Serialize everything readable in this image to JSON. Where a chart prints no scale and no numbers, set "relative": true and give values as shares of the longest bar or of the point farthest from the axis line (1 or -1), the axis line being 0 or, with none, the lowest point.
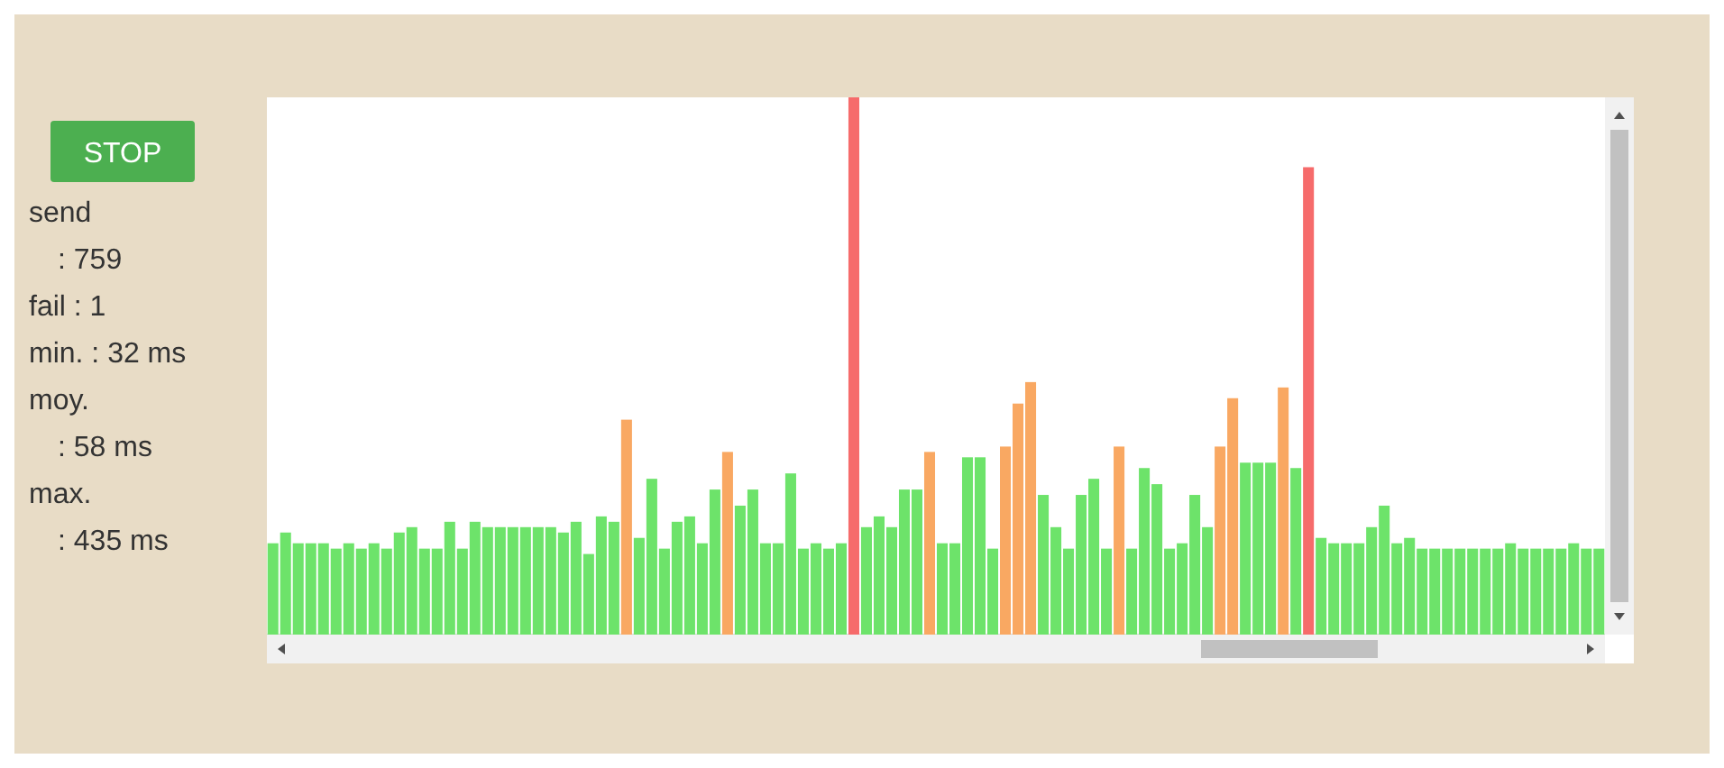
{
  "chart_data": {
    "type": "bar",
    "relative": true,
    "categories": [
      null,
      null,
      null,
      null,
      null,
      null,
      null,
      null,
      null,
      null,
      null,
      null,
      null,
      null,
      null,
      null,
      null,
      null,
      null,
      null,
      null,
      null,
      null,
      null,
      null,
      null,
      null,
      null,
      null,
      null,
      null,
      null,
      null,
      null,
      null,
      null,
      null,
      null,
      null,
      null,
      null,
      null,
      null,
      null,
      null,
      null,
      null,
      null,
      null,
      null,
      null,
      null,
      null,
      null,
      null,
      null,
      null,
      null,
      null,
      null,
      null,
      null,
      null,
      null,
      null,
      null,
      null,
      null,
      null,
      null,
      null,
      null,
      null,
      null,
      null,
      null,
      null,
      null,
      null,
      null,
      null,
      null,
      null,
      null,
      null,
      null,
      null,
      null,
      null,
      null,
      null,
      null,
      null,
      null,
      null,
      null,
      null,
      null,
      null,
      null,
      null,
      null,
      null,
      null,
      null,
      null
    ],
    "values": [
      0.17,
      0.19,
      0.17,
      0.17,
      0.17,
      0.16,
      0.17,
      0.16,
      0.17,
      0.16,
      0.19,
      0.2,
      0.16,
      0.16,
      0.21,
      0.16,
      0.21,
      0.2,
      0.2,
      0.2,
      0.2,
      0.2,
      0.2,
      0.19,
      0.21,
      0.15,
      0.22,
      0.21,
      0.4,
      0.18,
      0.29,
      0.16,
      0.21,
      0.22,
      0.17,
      0.27,
      0.34,
      0.24,
      0.27,
      0.17,
      0.17,
      0.3,
      0.16,
      0.17,
      0.16,
      0.17,
      1,
      0.2,
      0.22,
      0.2,
      0.27,
      0.27,
      0.34,
      0.17,
      0.17,
      0.33,
      0.33,
      0.16,
      0.35,
      0.43,
      0.47,
      0.26,
      0.2,
      0.16,
      0.26,
      0.29,
      0.16,
      0.35,
      0.16,
      0.31,
      0.28,
      0.16,
      0.17,
      0.26,
      0.2,
      0.35,
      0.44,
      0.32,
      0.32,
      0.32,
      0.46,
      0.31,
      0.87,
      0.18,
      0.17,
      0.17,
      0.17,
      0.2,
      0.24,
      0.17,
      0.18,
      0.16,
      0.16,
      0.16,
      0.16,
      0.16,
      0.16,
      0.16,
      0.17,
      0.16,
      0.16,
      0.16,
      0.16,
      0.17,
      0.16,
      0.16
    ],
    "colors": [
      "#6de36a",
      "#6de36a",
      "#6de36a",
      "#6de36a",
      "#6de36a",
      "#6de36a",
      "#6de36a",
      "#6de36a",
      "#6de36a",
      "#6de36a",
      "#6de36a",
      "#6de36a",
      "#6de36a",
      "#6de36a",
      "#6de36a",
      "#6de36a",
      "#6de36a",
      "#6de36a",
      "#6de36a",
      "#6de36a",
      "#6de36a",
      "#6de36a",
      "#6de36a",
      "#6de36a",
      "#6de36a",
      "#6de36a",
      "#6de36a",
      "#6de36a",
      "#f9a862",
      "#6de36a",
      "#6de36a",
      "#6de36a",
      "#6de36a",
      "#6de36a",
      "#6de36a",
      "#6de36a",
      "#f9a862",
      "#6de36a",
      "#6de36a",
      "#6de36a",
      "#6de36a",
      "#6de36a",
      "#6de36a",
      "#6de36a",
      "#6de36a",
      "#6de36a",
      "#f66b6b",
      "#6de36a",
      "#6de36a",
      "#6de36a",
      "#6de36a",
      "#6de36a",
      "#f9a862",
      "#6de36a",
      "#6de36a",
      "#6de36a",
      "#6de36a",
      "#6de36a",
      "#f9a862",
      "#f9a862",
      "#f9a862",
      "#6de36a",
      "#6de36a",
      "#6de36a",
      "#6de36a",
      "#6de36a",
      "#6de36a",
      "#f9a862",
      "#6de36a",
      "#6de36a",
      "#6de36a",
      "#6de36a",
      "#6de36a",
      "#6de36a",
      "#6de36a",
      "#f9a862",
      "#f9a862",
      "#6de36a",
      "#6de36a",
      "#6de36a",
      "#f9a862",
      "#6de36a",
      "#f66b6b",
      "#6de36a",
      "#6de36a",
      "#6de36a",
      "#6de36a",
      "#6de36a",
      "#6de36a",
      "#6de36a",
      "#6de36a",
      "#6de36a",
      "#6de36a",
      "#6de36a",
      "#6de36a",
      "#6de36a",
      "#6de36a",
      "#6de36a",
      "#6de36a",
      "#6de36a",
      "#6de36a",
      "#6de36a",
      "#6de36a",
      "#6de36a",
      "#6de36a",
      "#6de36a"
    ],
    "annotations": [
      "STOP",
      "send",
      ": 759",
      "fail : 1",
      "min. : 32 ms",
      "moy.",
      ": 58 ms",
      "max.",
      ": 435 ms"
    ]
  }
}
